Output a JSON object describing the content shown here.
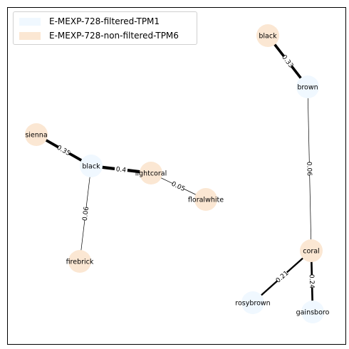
{
  "legend": [
    {
      "label": "E-MEXP-728-filtered-TPM1",
      "color": "#f0f8ff"
    },
    {
      "label": "E-MEXP-728-non-filtered-TPM6",
      "color": "#fbe7d3"
    }
  ],
  "colors": {
    "filtered": "#f0f8ff",
    "non_filtered": "#fbe7d3",
    "edge": "#000000"
  },
  "nodes": [
    {
      "id": "n1",
      "label": "black",
      "group": "non_filtered"
    },
    {
      "id": "n2",
      "label": "brown",
      "group": "filtered"
    },
    {
      "id": "n3",
      "label": "coral",
      "group": "non_filtered"
    },
    {
      "id": "n4",
      "label": "rosybrown",
      "group": "filtered"
    },
    {
      "id": "n5",
      "label": "gainsboro",
      "group": "filtered"
    },
    {
      "id": "n6",
      "label": "sienna",
      "group": "non_filtered"
    },
    {
      "id": "n7",
      "label": "black",
      "group": "filtered"
    },
    {
      "id": "n8",
      "label": "lightcoral",
      "group": "non_filtered"
    },
    {
      "id": "n9",
      "label": "floralwhite",
      "group": "non_filtered"
    },
    {
      "id": "n10",
      "label": "firebrick",
      "group": "non_filtered"
    }
  ],
  "edges": [
    {
      "source": "n1",
      "target": "n2",
      "weight": "0.33"
    },
    {
      "source": "n2",
      "target": "n3",
      "weight": "0.06"
    },
    {
      "source": "n3",
      "target": "n4",
      "weight": "0.21"
    },
    {
      "source": "n3",
      "target": "n5",
      "weight": "0.24"
    },
    {
      "source": "n6",
      "target": "n7",
      "weight": "0.35"
    },
    {
      "source": "n7",
      "target": "n8",
      "weight": "0.4"
    },
    {
      "source": "n8",
      "target": "n9",
      "weight": "0.05"
    },
    {
      "source": "n7",
      "target": "n10",
      "weight": "0.06"
    }
  ]
}
